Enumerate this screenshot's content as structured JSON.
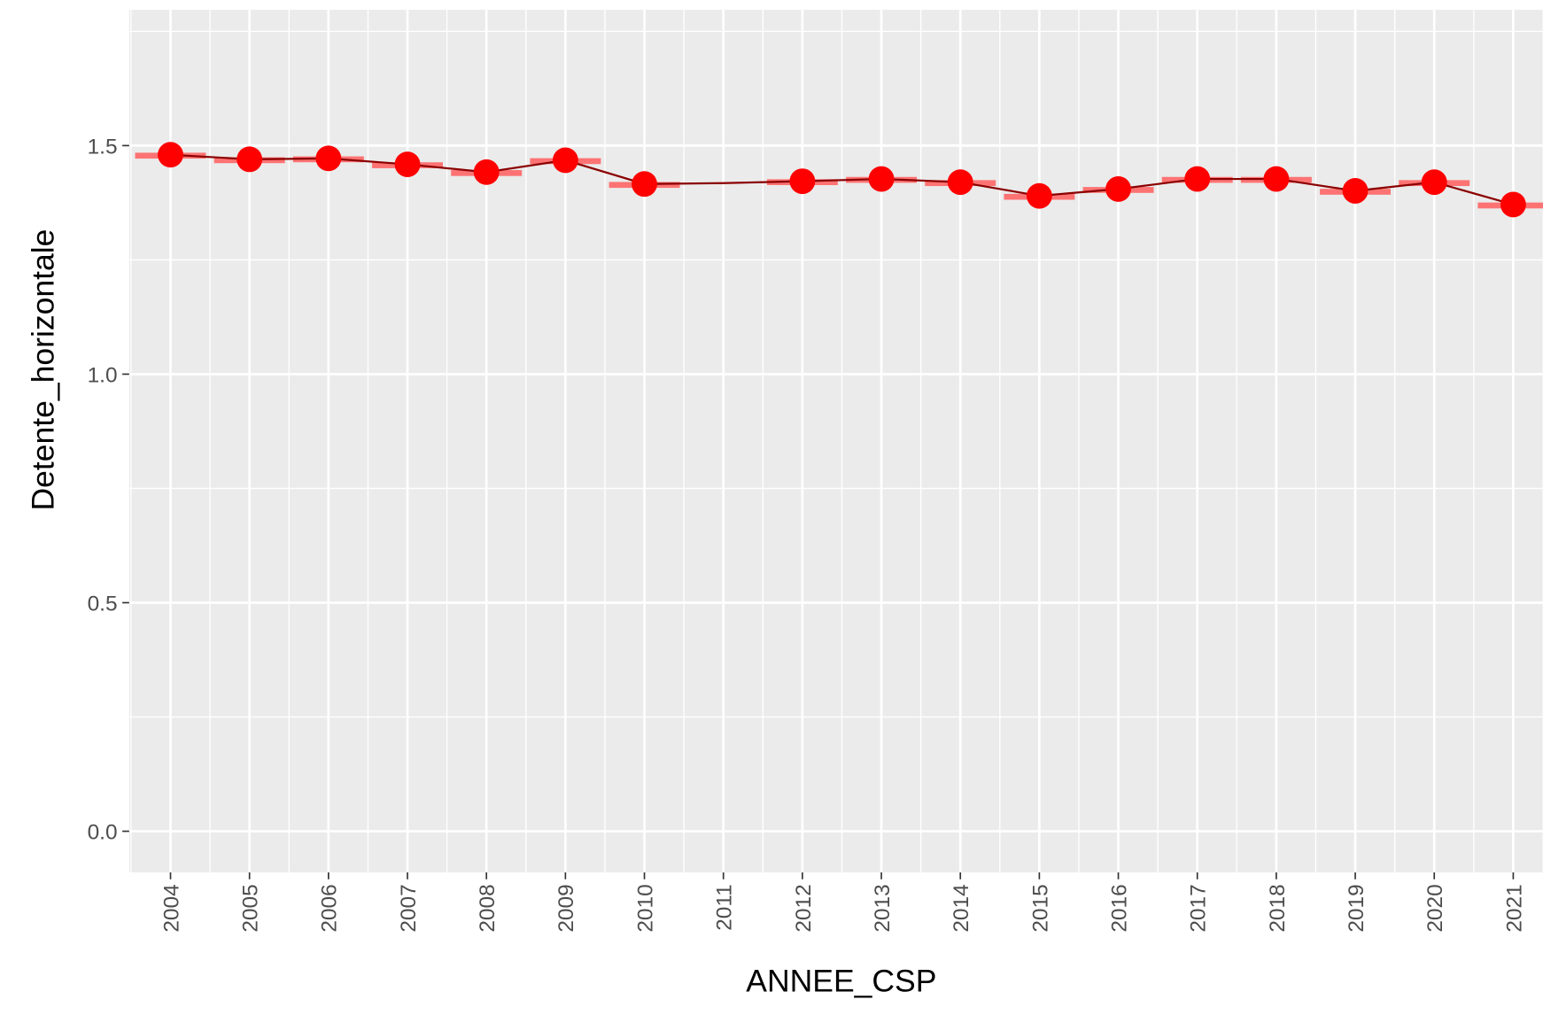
{
  "chart_data": {
    "type": "line",
    "x_label": "ANNEE_CSP",
    "y_label": "Detente_horizontale",
    "categories": [
      "2004",
      "2005",
      "2006",
      "2007",
      "2008",
      "2009",
      "2010",
      "2011",
      "2012",
      "2013",
      "2014",
      "2015",
      "2016",
      "2017",
      "2018",
      "2019",
      "2020",
      "2021"
    ],
    "series": [
      {
        "color": "#8b0000",
        "kind": "line",
        "values": [
          1.48,
          1.47,
          1.472,
          1.459,
          1.442,
          1.468,
          1.416,
          1.418,
          1.422,
          1.427,
          1.42,
          1.39,
          1.405,
          1.427,
          1.427,
          1.401,
          1.42,
          1.371
        ]
      },
      {
        "color": "#ff6666",
        "kind": "crossbar",
        "values": [
          1.478,
          1.468,
          1.47,
          1.457,
          1.44,
          1.466,
          1.414,
          null,
          1.42,
          1.425,
          1.418,
          1.388,
          1.403,
          1.425,
          1.425,
          1.399,
          1.418,
          1.369
        ]
      },
      {
        "color": "#ff0000",
        "kind": "point",
        "values": [
          1.48,
          1.47,
          1.472,
          1.459,
          1.442,
          1.468,
          1.416,
          null,
          1.422,
          1.427,
          1.42,
          1.39,
          1.405,
          1.427,
          1.427,
          1.401,
          1.42,
          1.371
        ]
      }
    ],
    "ylim": [
      -0.09,
      1.797
    ],
    "yticks": [
      {
        "value": 0,
        "label": "0.0"
      },
      0.5,
      {
        "value": 1,
        "label": "1.0"
      },
      1.5
    ],
    "minor_yticks": [
      0.25,
      0.75,
      1.25,
      1.75
    ],
    "grid": true,
    "panel_background": "#ebebeb"
  }
}
